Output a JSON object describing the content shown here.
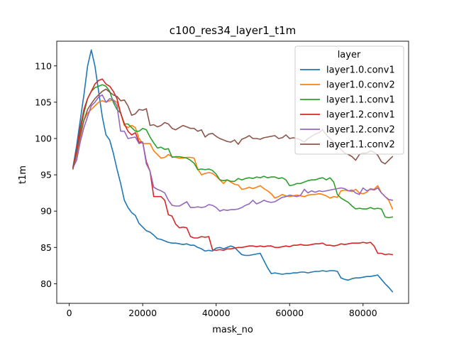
{
  "chart_data": {
    "type": "line",
    "title": "c100_res34_layer1_t1m",
    "xlabel": "mask_no",
    "ylabel": "t1m",
    "xlim": [
      -3400,
      92400
    ],
    "ylim": [
      77.3,
      113.4
    ],
    "xticks": [
      0,
      20000,
      40000,
      60000,
      80000
    ],
    "xtick_labels": [
      "0",
      "20000",
      "40000",
      "60000",
      "80000"
    ],
    "yticks": [
      80,
      85,
      90,
      95,
      100,
      105,
      110
    ],
    "ytick_labels": [
      "80",
      "85",
      "90",
      "95",
      "100",
      "105",
      "110"
    ],
    "grid": false,
    "legend": {
      "title": "layer",
      "placement": "top-right"
    },
    "series": [
      {
        "name": "layer1.0.conv1",
        "color": "#1f77b4",
        "x": [
          1000,
          2000,
          3000,
          4000,
          5000,
          6000,
          7000,
          8000,
          9000,
          10000,
          11000,
          12000,
          13000,
          14000,
          15000,
          16000,
          17000,
          18000,
          19000,
          20000,
          21000,
          22000,
          23000,
          24000,
          25000,
          26000,
          27000,
          28000,
          29000,
          30000,
          31000,
          32000,
          33000,
          34000,
          35000,
          36000,
          37000,
          38000,
          39000,
          40000,
          41000,
          42000,
          43000,
          44000,
          45000,
          46000,
          47000,
          48000,
          49000,
          50000,
          51000,
          52000,
          53000,
          54000,
          55000,
          56000,
          57000,
          58000,
          59000,
          60000,
          61000,
          62000,
          63000,
          64000,
          65000,
          66000,
          67000,
          68000,
          69000,
          70000,
          71000,
          72000,
          73000,
          74000,
          75000,
          76000,
          77000,
          78000,
          79000,
          80000,
          81000,
          82000,
          83000,
          84000,
          85000,
          86000,
          87000,
          88000
        ],
        "y": [
          96.0,
          99.0,
          102.5,
          106.0,
          110.0,
          112.2,
          110.0,
          106.5,
          103.0,
          100.5,
          99.8,
          98.0,
          95.8,
          93.8,
          91.5,
          90.5,
          89.8,
          89.4,
          88.3,
          87.8,
          87.3,
          87.1,
          86.7,
          86.2,
          86.1,
          85.9,
          85.7,
          85.6,
          85.6,
          85.5,
          85.4,
          85.5,
          85.3,
          85.3,
          85.0,
          84.8,
          84.5,
          84.6,
          84.5,
          84.9,
          85.0,
          84.8,
          85.0,
          85.2,
          85.0,
          84.5,
          84.0,
          83.9,
          83.9,
          84.0,
          84.1,
          84.2,
          83.2,
          82.2,
          81.4,
          81.5,
          81.4,
          81.3,
          81.4,
          81.4,
          81.5,
          81.5,
          81.6,
          81.6,
          81.5,
          81.6,
          81.7,
          81.7,
          81.8,
          81.7,
          81.8,
          81.8,
          81.7,
          80.8,
          80.6,
          80.5,
          80.7,
          80.8,
          80.8,
          80.9,
          81.0,
          81.0,
          81.1,
          81.2,
          80.6,
          80.0,
          79.5,
          78.9
        ]
      },
      {
        "name": "layer1.0.conv2",
        "color": "#ff7f0e",
        "x": [
          1000,
          2000,
          3000,
          4000,
          5000,
          6000,
          7000,
          8000,
          9000,
          10000,
          11000,
          12000,
          13000,
          14000,
          15000,
          16000,
          17000,
          18000,
          19000,
          20000,
          21000,
          22000,
          23000,
          24000,
          25000,
          26000,
          27000,
          28000,
          29000,
          30000,
          31000,
          32000,
          33000,
          34000,
          35000,
          36000,
          37000,
          38000,
          39000,
          40000,
          41000,
          42000,
          43000,
          44000,
          45000,
          46000,
          47000,
          48000,
          49000,
          50000,
          51000,
          52000,
          53000,
          54000,
          55000,
          56000,
          57000,
          58000,
          59000,
          60000,
          61000,
          62000,
          63000,
          64000,
          65000,
          66000,
          67000,
          68000,
          69000,
          70000,
          71000,
          72000,
          73000,
          74000,
          75000,
          76000,
          77000,
          78000,
          79000,
          80000,
          81000,
          82000,
          83000,
          84000,
          85000,
          86000,
          87000,
          88000
        ],
        "y": [
          96.0,
          97.5,
          100.0,
          102.5,
          103.5,
          104.0,
          104.5,
          105.0,
          105.2,
          105.0,
          105.2,
          105.3,
          105.0,
          103.5,
          101.8,
          101.5,
          101.8,
          101.5,
          100.0,
          99.3,
          99.3,
          99.3,
          98.3,
          97.8,
          97.3,
          97.4,
          97.8,
          97.5,
          97.4,
          97.3,
          97.3,
          97.4,
          97.4,
          97.3,
          95.8,
          95.0,
          95.2,
          95.3,
          95.2,
          94.8,
          94.3,
          93.8,
          94.3,
          94.0,
          93.7,
          93.6,
          93.0,
          93.1,
          93.3,
          93.1,
          93.3,
          93.5,
          93.1,
          92.8,
          92.4,
          91.8,
          92.0,
          92.3,
          92.1,
          92.0,
          92.1,
          92.2,
          92.1,
          92.0,
          92.2,
          92.3,
          92.3,
          92.4,
          92.3,
          92.1,
          91.8,
          92.0,
          91.9,
          92.8,
          92.9,
          92.8,
          92.7,
          93.0,
          92.5,
          92.4,
          92.6,
          93.1,
          93.0,
          93.5,
          92.5,
          92.0,
          91.5,
          90.3
        ]
      },
      {
        "name": "layer1.1.conv1",
        "color": "#2ca02c",
        "x": [
          1000,
          2000,
          3000,
          4000,
          5000,
          6000,
          7000,
          8000,
          9000,
          10000,
          11000,
          12000,
          13000,
          14000,
          15000,
          16000,
          17000,
          18000,
          19000,
          20000,
          21000,
          22000,
          23000,
          24000,
          25000,
          26000,
          27000,
          28000,
          29000,
          30000,
          31000,
          32000,
          33000,
          34000,
          35000,
          36000,
          37000,
          38000,
          39000,
          40000,
          41000,
          42000,
          43000,
          44000,
          45000,
          46000,
          47000,
          48000,
          49000,
          50000,
          51000,
          52000,
          53000,
          54000,
          55000,
          56000,
          57000,
          58000,
          59000,
          60000,
          61000,
          62000,
          63000,
          64000,
          65000,
          66000,
          67000,
          68000,
          69000,
          70000,
          71000,
          72000,
          73000,
          74000,
          75000,
          76000,
          77000,
          78000,
          79000,
          80000,
          81000,
          82000,
          83000,
          84000,
          85000,
          86000,
          87000,
          88000
        ],
        "y": [
          96.0,
          98.0,
          101.0,
          103.5,
          105.5,
          106.5,
          107.0,
          107.2,
          107.4,
          107.2,
          106.5,
          105.0,
          104.0,
          103.5,
          102.0,
          102.0,
          101.5,
          101.0,
          101.0,
          101.4,
          101.2,
          100.2,
          99.4,
          98.7,
          98.8,
          98.5,
          98.6,
          97.4,
          97.5,
          97.5,
          97.4,
          97.3,
          97.0,
          96.6,
          95.7,
          95.8,
          95.7,
          95.8,
          95.6,
          95.1,
          94.3,
          94.2,
          94.3,
          94.1,
          94.1,
          94.5,
          94.3,
          94.5,
          94.6,
          94.5,
          94.7,
          94.6,
          94.8,
          94.6,
          94.7,
          94.7,
          94.5,
          94.6,
          94.3,
          93.5,
          93.6,
          93.8,
          93.8,
          94.0,
          94.2,
          94.3,
          94.3,
          94.5,
          94.6,
          94.3,
          94.6,
          94.0,
          92.3,
          91.8,
          91.5,
          91.2,
          90.7,
          90.3,
          90.4,
          90.3,
          90.3,
          90.5,
          90.3,
          90.4,
          90.3,
          89.2,
          89.1,
          89.2
        ]
      },
      {
        "name": "layer1.2.conv1",
        "color": "#d62728",
        "x": [
          1000,
          2000,
          3000,
          4000,
          5000,
          6000,
          7000,
          8000,
          9000,
          10000,
          11000,
          12000,
          13000,
          14000,
          15000,
          16000,
          17000,
          18000,
          19000,
          20000,
          21000,
          22000,
          23000,
          24000,
          25000,
          26000,
          27000,
          28000,
          29000,
          30000,
          31000,
          32000,
          33000,
          34000,
          35000,
          36000,
          37000,
          38000,
          39000,
          40000,
          41000,
          42000,
          43000,
          44000,
          45000,
          46000,
          47000,
          48000,
          49000,
          50000,
          51000,
          52000,
          53000,
          54000,
          55000,
          56000,
          57000,
          58000,
          59000,
          60000,
          61000,
          62000,
          63000,
          64000,
          65000,
          66000,
          67000,
          68000,
          69000,
          70000,
          71000,
          72000,
          73000,
          74000,
          75000,
          76000,
          77000,
          78000,
          79000,
          80000,
          81000,
          82000,
          83000,
          84000,
          85000,
          86000,
          87000,
          88000
        ],
        "y": [
          96.0,
          98.5,
          101.5,
          104.0,
          105.5,
          106.5,
          107.5,
          108.0,
          108.2,
          107.5,
          107.2,
          106.5,
          105.5,
          103.5,
          102.0,
          101.0,
          100.5,
          100.8,
          99.5,
          99.5,
          96.8,
          95.5,
          92.0,
          92.0,
          92.0,
          91.5,
          89.5,
          89.3,
          88.2,
          87.7,
          87.8,
          87.7,
          86.5,
          86.3,
          86.3,
          86.5,
          86.4,
          86.5,
          84.7,
          84.6,
          84.7,
          84.6,
          84.8,
          84.8,
          84.9,
          85.0,
          85.0,
          85.1,
          85.2,
          85.2,
          85.1,
          85.2,
          85.1,
          85.2,
          85.2,
          85.0,
          85.0,
          85.1,
          85.2,
          85.1,
          85.3,
          85.3,
          85.4,
          85.3,
          85.3,
          85.4,
          85.5,
          85.5,
          85.6,
          85.3,
          85.3,
          85.2,
          85.3,
          85.5,
          85.4,
          85.5,
          85.6,
          85.6,
          85.6,
          85.7,
          85.6,
          85.7,
          85.2,
          84.2,
          84.2,
          84.0,
          84.1,
          84.0
        ]
      },
      {
        "name": "layer1.2.conv2",
        "color": "#9467bd",
        "x": [
          1000,
          2000,
          3000,
          4000,
          5000,
          6000,
          7000,
          8000,
          9000,
          10000,
          11000,
          12000,
          13000,
          14000,
          15000,
          16000,
          17000,
          18000,
          19000,
          20000,
          21000,
          22000,
          23000,
          24000,
          25000,
          26000,
          27000,
          28000,
          29000,
          30000,
          31000,
          32000,
          33000,
          34000,
          35000,
          36000,
          37000,
          38000,
          39000,
          40000,
          41000,
          42000,
          43000,
          44000,
          45000,
          46000,
          47000,
          48000,
          49000,
          50000,
          51000,
          52000,
          53000,
          54000,
          55000,
          56000,
          57000,
          58000,
          59000,
          60000,
          61000,
          62000,
          63000,
          64000,
          65000,
          66000,
          67000,
          68000,
          69000,
          70000,
          71000,
          72000,
          73000,
          74000,
          75000,
          76000,
          77000,
          78000,
          79000,
          80000,
          81000,
          82000,
          83000,
          84000,
          85000,
          86000,
          87000,
          88000
        ],
        "y": [
          96.0,
          97.0,
          99.5,
          101.5,
          103.0,
          104.5,
          105.0,
          105.7,
          106.0,
          105.0,
          105.5,
          105.3,
          104.5,
          101.0,
          101.0,
          100.0,
          100.1,
          100.2,
          99.3,
          99.5,
          96.5,
          95.5,
          93.3,
          93.0,
          92.8,
          92.5,
          91.5,
          90.8,
          90.7,
          90.7,
          91.0,
          91.3,
          90.5,
          90.5,
          90.6,
          90.5,
          90.6,
          90.9,
          90.8,
          90.5,
          90.0,
          90.2,
          90.1,
          90.2,
          90.2,
          90.3,
          90.5,
          90.8,
          91.0,
          91.5,
          91.0,
          91.2,
          91.5,
          91.3,
          91.2,
          91.3,
          91.6,
          91.9,
          92.0,
          92.2,
          92.1,
          92.0,
          92.2,
          93.0,
          92.5,
          92.8,
          92.6,
          92.8,
          92.7,
          92.8,
          92.9,
          93.0,
          93.1,
          93.2,
          93.1,
          92.8,
          92.9,
          92.5,
          92.3,
          93.2,
          92.8,
          93.0,
          92.9,
          93.2,
          92.5,
          92.0,
          91.6,
          91.5
        ]
      },
      {
        "name": "layer1.1.conv2",
        "color": "#8c564b",
        "x": [
          1000,
          2000,
          3000,
          4000,
          5000,
          6000,
          7000,
          8000,
          9000,
          10000,
          11000,
          12000,
          13000,
          14000,
          15000,
          16000,
          17000,
          18000,
          19000,
          20000,
          21000,
          22000,
          23000,
          24000,
          25000,
          26000,
          27000,
          28000,
          29000,
          30000,
          31000,
          32000,
          33000,
          34000,
          35000,
          36000,
          37000,
          38000,
          39000,
          40000,
          41000,
          42000,
          43000,
          44000,
          45000,
          46000,
          47000,
          48000,
          49000,
          50000,
          51000,
          52000,
          53000,
          54000,
          55000,
          56000,
          57000,
          58000,
          59000,
          60000,
          61000,
          62000,
          63000,
          64000,
          65000,
          66000,
          67000,
          68000,
          69000,
          70000,
          71000,
          72000,
          73000,
          74000,
          75000,
          76000,
          77000,
          78000,
          79000,
          80000,
          81000,
          82000,
          83000,
          84000,
          85000,
          86000,
          87000,
          88000
        ],
        "y": [
          95.8,
          98.0,
          100.5,
          102.5,
          104.0,
          104.8,
          105.5,
          106.0,
          106.5,
          106.8,
          106.4,
          106.0,
          105.8,
          105.2,
          105.3,
          104.5,
          103.2,
          103.4,
          104.0,
          103.9,
          104.1,
          101.8,
          101.9,
          101.6,
          101.8,
          102.2,
          102.0,
          101.4,
          101.2,
          101.5,
          101.8,
          101.6,
          101.4,
          101.4,
          101.0,
          101.2,
          100.2,
          100.6,
          100.7,
          100.3,
          100.0,
          99.8,
          99.6,
          99.5,
          99.8,
          99.2,
          99.9,
          100.1,
          100.4,
          100.0,
          100.0,
          99.9,
          100.1,
          100.2,
          100.3,
          100.4,
          100.0,
          100.1,
          100.5,
          100.0,
          100.1,
          100.0,
          99.8,
          99.5,
          100.0,
          100.3,
          100.6,
          100.8,
          101.2,
          100.5,
          100.0,
          99.5,
          99.0,
          98.5,
          98.0,
          97.8,
          97.5,
          97.0,
          97.8,
          98.0,
          98.0,
          98.3,
          98.1,
          97.7,
          96.8,
          96.5,
          97.0,
          97.5
        ]
      }
    ]
  }
}
